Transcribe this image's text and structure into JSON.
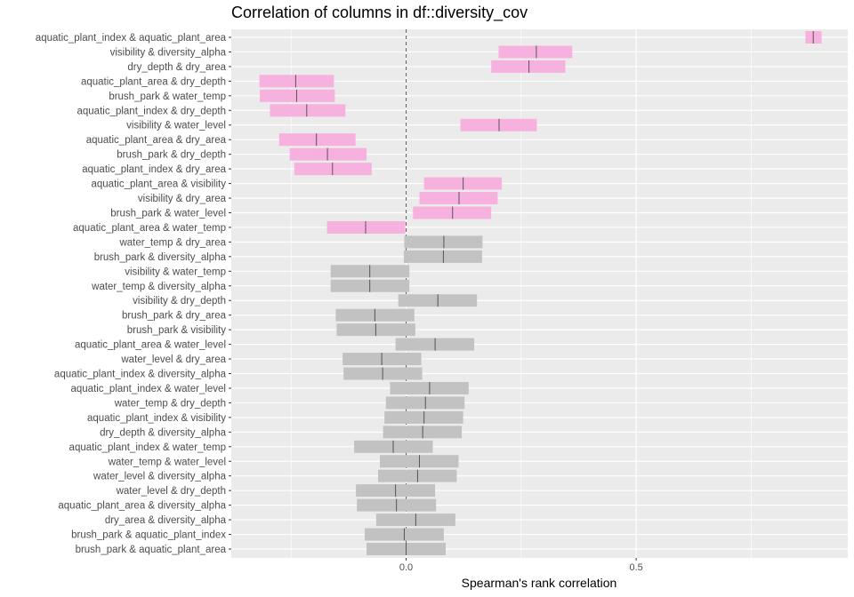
{
  "chart_data": {
    "type": "interval",
    "title": "Correlation of columns in df::diversity_cov",
    "xlabel": "Spearman's rank correlation",
    "ylabel": "",
    "xlim": [
      -0.38,
      0.96
    ],
    "x_ticks": [
      0.0,
      0.5
    ],
    "x_tick_labels": [
      "0.0",
      "0.5"
    ],
    "reference_line": 0,
    "grid": true,
    "legend": "none",
    "colors": {
      "panel_background": "#ebebeb",
      "grid": "#ffffff",
      "significant": "#f7b1de",
      "not_significant": "#c2c2c2",
      "estimate_line": "#555555",
      "reference_line": "#666677"
    },
    "series": [
      {
        "label": "aquatic_plant_index & aquatic_plant_area",
        "estimate": 0.885,
        "lower": 0.868,
        "upper": 0.903,
        "significant": true
      },
      {
        "label": "visibility & diversity_alpha",
        "estimate": 0.283,
        "lower": 0.201,
        "upper": 0.361,
        "significant": true
      },
      {
        "label": "dry_depth & dry_area",
        "estimate": 0.267,
        "lower": 0.185,
        "upper": 0.346,
        "significant": true
      },
      {
        "label": "aquatic_plant_area & dry_depth",
        "estimate": -0.24,
        "lower": -0.319,
        "upper": -0.157,
        "significant": true
      },
      {
        "label": "brush_park & water_temp",
        "estimate": -0.238,
        "lower": -0.318,
        "upper": -0.155,
        "significant": true
      },
      {
        "label": "aquatic_plant_index & dry_depth",
        "estimate": -0.216,
        "lower": -0.296,
        "upper": -0.132,
        "significant": true
      },
      {
        "label": "visibility & water_level",
        "estimate": 0.202,
        "lower": 0.118,
        "upper": 0.284,
        "significant": true
      },
      {
        "label": "aquatic_plant_area & dry_area",
        "estimate": -0.195,
        "lower": -0.276,
        "upper": -0.11,
        "significant": true
      },
      {
        "label": "brush_park & dry_depth",
        "estimate": -0.171,
        "lower": -0.253,
        "upper": -0.086,
        "significant": true
      },
      {
        "label": "aquatic_plant_index & dry_area",
        "estimate": -0.16,
        "lower": -0.243,
        "upper": -0.075,
        "significant": true
      },
      {
        "label": "aquatic_plant_area & visibility",
        "estimate": 0.124,
        "lower": 0.039,
        "upper": 0.208,
        "significant": true
      },
      {
        "label": "visibility & dry_area",
        "estimate": 0.115,
        "lower": 0.029,
        "upper": 0.199,
        "significant": true
      },
      {
        "label": "brush_park & water_level",
        "estimate": 0.101,
        "lower": 0.015,
        "upper": 0.185,
        "significant": true
      },
      {
        "label": "aquatic_plant_area & water_temp",
        "estimate": -0.088,
        "lower": -0.172,
        "upper": -0.002,
        "significant": true
      },
      {
        "label": "water_temp & dry_area",
        "estimate": 0.082,
        "lower": -0.004,
        "upper": 0.166,
        "significant": false
      },
      {
        "label": "brush_park & diversity_alpha",
        "estimate": 0.081,
        "lower": -0.005,
        "upper": 0.165,
        "significant": false
      },
      {
        "label": "visibility & water_temp",
        "estimate": -0.079,
        "lower": -0.164,
        "upper": 0.007,
        "significant": false
      },
      {
        "label": "water_temp & diversity_alpha",
        "estimate": -0.079,
        "lower": -0.164,
        "upper": 0.007,
        "significant": false
      },
      {
        "label": "visibility & dry_depth",
        "estimate": 0.069,
        "lower": -0.017,
        "upper": 0.154,
        "significant": false
      },
      {
        "label": "brush_park & dry_area",
        "estimate": -0.068,
        "lower": -0.153,
        "upper": 0.018,
        "significant": false
      },
      {
        "label": "brush_park & visibility",
        "estimate": -0.066,
        "lower": -0.151,
        "upper": 0.02,
        "significant": false
      },
      {
        "label": "aquatic_plant_area & water_level",
        "estimate": 0.063,
        "lower": -0.023,
        "upper": 0.148,
        "significant": false
      },
      {
        "label": "water_level & dry_area",
        "estimate": -0.053,
        "lower": -0.138,
        "upper": 0.033,
        "significant": false
      },
      {
        "label": "aquatic_plant_index & diversity_alpha",
        "estimate": -0.051,
        "lower": -0.136,
        "upper": 0.035,
        "significant": false
      },
      {
        "label": "aquatic_plant_index & water_level",
        "estimate": 0.051,
        "lower": -0.035,
        "upper": 0.136,
        "significant": false
      },
      {
        "label": "water_temp & dry_depth",
        "estimate": 0.042,
        "lower": -0.044,
        "upper": 0.127,
        "significant": false
      },
      {
        "label": "aquatic_plant_index & visibility",
        "estimate": 0.039,
        "lower": -0.047,
        "upper": 0.124,
        "significant": false
      },
      {
        "label": "dry_depth & diversity_alpha",
        "estimate": 0.036,
        "lower": -0.05,
        "upper": 0.121,
        "significant": false
      },
      {
        "label": "aquatic_plant_index & water_temp",
        "estimate": -0.028,
        "lower": -0.113,
        "upper": 0.058,
        "significant": false
      },
      {
        "label": "water_temp & water_level",
        "estimate": 0.029,
        "lower": -0.057,
        "upper": 0.114,
        "significant": false
      },
      {
        "label": "water_level & diversity_alpha",
        "estimate": 0.025,
        "lower": -0.061,
        "upper": 0.11,
        "significant": false
      },
      {
        "label": "water_level & dry_depth",
        "estimate": -0.023,
        "lower": -0.109,
        "upper": 0.063,
        "significant": false
      },
      {
        "label": "aquatic_plant_area & diversity_alpha",
        "estimate": -0.021,
        "lower": -0.107,
        "upper": 0.065,
        "significant": false
      },
      {
        "label": "dry_area & diversity_alpha",
        "estimate": 0.021,
        "lower": -0.065,
        "upper": 0.107,
        "significant": false
      },
      {
        "label": "brush_park & aquatic_plant_index",
        "estimate": -0.004,
        "lower": -0.09,
        "upper": 0.082,
        "significant": false
      },
      {
        "label": "brush_park & aquatic_plant_area",
        "estimate": 0.0,
        "lower": -0.086,
        "upper": 0.086,
        "significant": false
      }
    ]
  }
}
